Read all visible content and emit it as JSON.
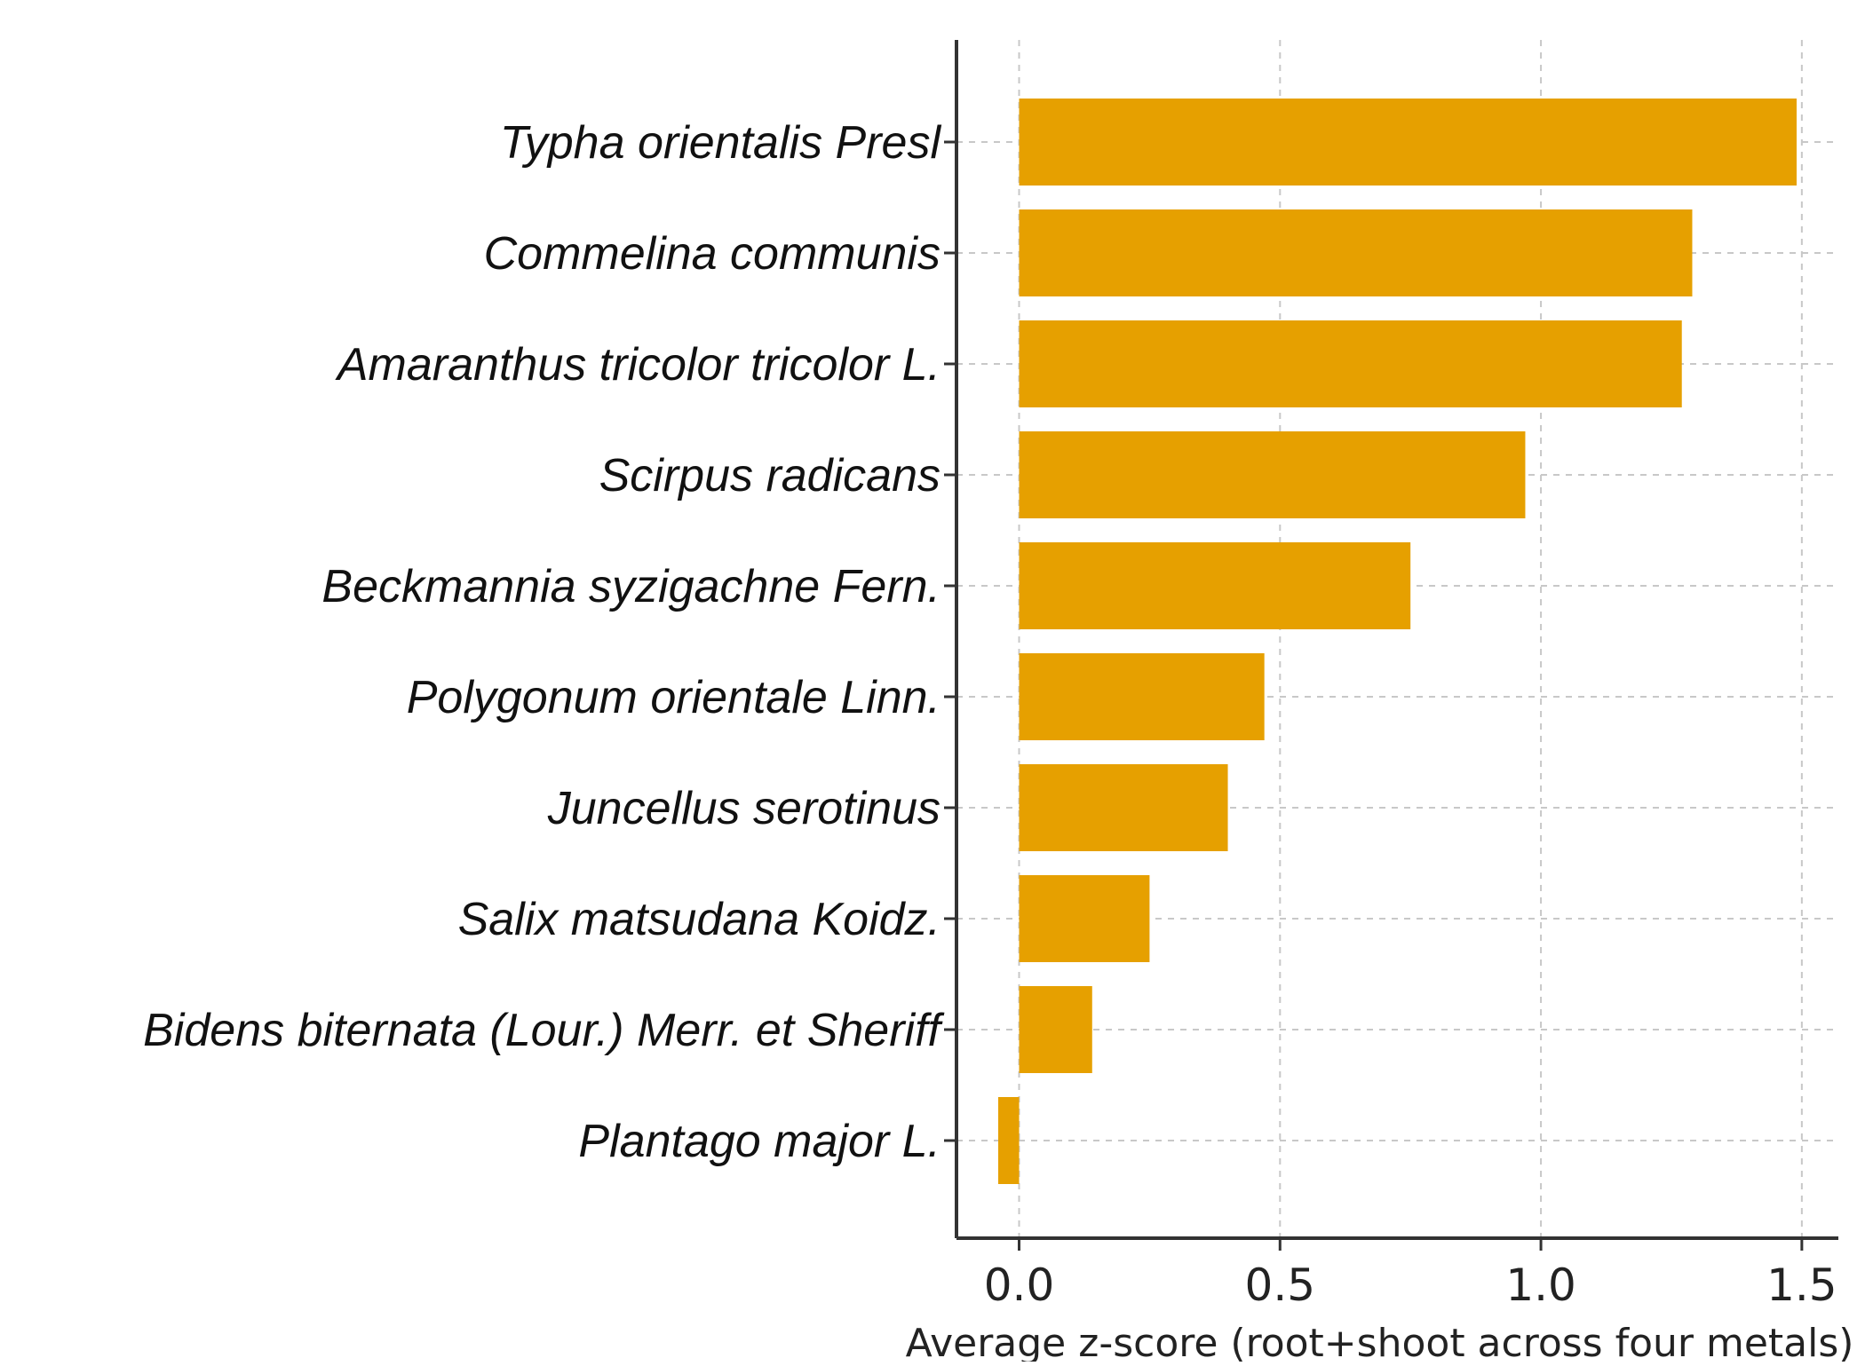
{
  "chart_data": {
    "type": "bar",
    "orientation": "horizontal",
    "title": "",
    "xlabel": "Average z-score (root+shoot across four metals)",
    "ylabel": "",
    "categories": [
      "Typha orientalis Presl",
      "Commelina communis",
      "Amaranthus tricolor tricolor L.",
      "Scirpus radicans",
      "Beckmannia syzigachne Fern.",
      "Polygonum orientale Linn.",
      "Juncellus serotinus",
      "Salix matsudana Koidz.",
      "Bidens biternata (Lour.) Merr. et Sheriff",
      "Plantago major L."
    ],
    "values": [
      1.49,
      1.29,
      1.27,
      0.97,
      0.75,
      0.47,
      0.4,
      0.25,
      0.14,
      -0.04
    ],
    "xlim": [
      -0.12,
      1.57
    ],
    "xticks": [
      0.0,
      0.5,
      1.0,
      1.5
    ],
    "xtick_labels": [
      "0.0",
      "0.5",
      "1.0",
      "1.5"
    ],
    "grid": true,
    "legend": "none",
    "bar_color": "#E6A000"
  }
}
